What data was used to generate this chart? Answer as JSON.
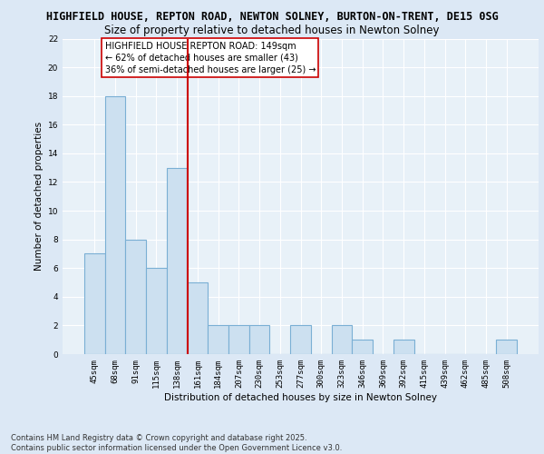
{
  "title_line1": "HIGHFIELD HOUSE, REPTON ROAD, NEWTON SOLNEY, BURTON-ON-TRENT, DE15 0SG",
  "title_line2": "Size of property relative to detached houses in Newton Solney",
  "xlabel": "Distribution of detached houses by size in Newton Solney",
  "ylabel": "Number of detached properties",
  "categories": [
    "45sqm",
    "68sqm",
    "91sqm",
    "115sqm",
    "138sqm",
    "161sqm",
    "184sqm",
    "207sqm",
    "230sqm",
    "253sqm",
    "277sqm",
    "300sqm",
    "323sqm",
    "346sqm",
    "369sqm",
    "392sqm",
    "415sqm",
    "439sqm",
    "462sqm",
    "485sqm",
    "508sqm"
  ],
  "values": [
    7,
    18,
    8,
    6,
    13,
    5,
    2,
    2,
    2,
    0,
    2,
    0,
    2,
    1,
    0,
    1,
    0,
    0,
    0,
    0,
    1
  ],
  "bar_color": "#cce0f0",
  "bar_edge_color": "#7aafd4",
  "bar_edge_width": 0.8,
  "highlight_line_color": "#cc0000",
  "highlight_bar_index": 4,
  "annotation_text": "HIGHFIELD HOUSE REPTON ROAD: 149sqm\n← 62% of detached houses are smaller (43)\n36% of semi-detached houses are larger (25) →",
  "annotation_box_color": "#ffffff",
  "annotation_box_edge_color": "#cc0000",
  "ylim": [
    0,
    22
  ],
  "yticks": [
    0,
    2,
    4,
    6,
    8,
    10,
    12,
    14,
    16,
    18,
    20,
    22
  ],
  "background_color": "#dce8f5",
  "plot_background_color": "#e8f1f8",
  "footer_text": "Contains HM Land Registry data © Crown copyright and database right 2025.\nContains public sector information licensed under the Open Government Licence v3.0.",
  "title_fontsize": 8.5,
  "subtitle_fontsize": 8.5,
  "axis_label_fontsize": 7.5,
  "tick_fontsize": 6.5,
  "annotation_fontsize": 7,
  "footer_fontsize": 6
}
